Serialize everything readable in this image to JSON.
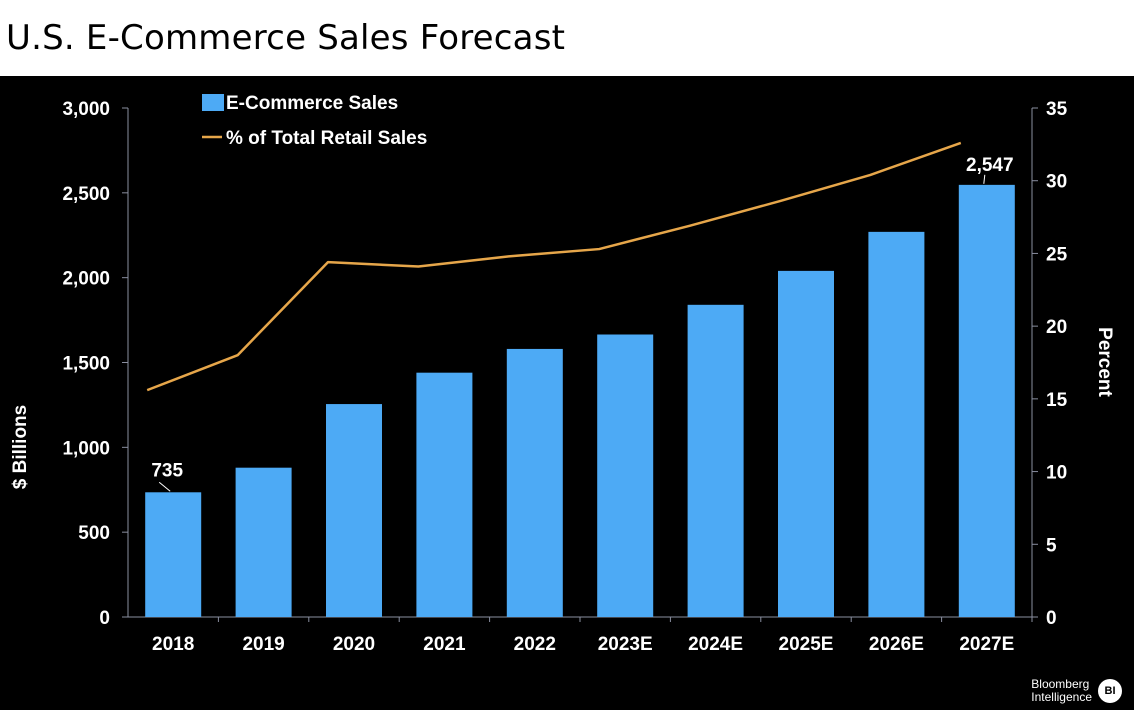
{
  "chart_data": {
    "type": "bar",
    "title": "U.S. E-Commerce Sales Forecast",
    "categories": [
      "2018",
      "2019",
      "2020",
      "2021",
      "2022",
      "2023E",
      "2024E",
      "2025E",
      "2026E",
      "2027E"
    ],
    "series": [
      {
        "name": "E-Commerce Sales",
        "type": "bar",
        "axis": "left",
        "color": "#4daaf5",
        "values": [
          735,
          880,
          1255,
          1440,
          1580,
          1665,
          1840,
          2040,
          2270,
          2547
        ]
      },
      {
        "name": "% of Total Retail Sales",
        "type": "line",
        "axis": "right",
        "color": "#e6a64a",
        "values": [
          15.6,
          18.0,
          24.4,
          24.1,
          24.8,
          25.3,
          26.9,
          28.6,
          30.4,
          32.6
        ]
      }
    ],
    "ylabel": "$ Billions",
    "ylabel_right": "Percent",
    "ylim": [
      0,
      3000
    ],
    "ylim_right": [
      0,
      35
    ],
    "yticks": [
      "0",
      "500",
      "1,000",
      "1,500",
      "2,000",
      "2,500",
      "3,000"
    ],
    "yticks_right": [
      "0",
      "5",
      "10",
      "15",
      "20",
      "25",
      "30",
      "35"
    ],
    "annotations": [
      {
        "index": 0,
        "text": "735"
      },
      {
        "index": 9,
        "text": "2,547"
      }
    ],
    "legend_position": "top-left",
    "grid": false
  },
  "brand": {
    "line1": "Bloomberg",
    "line2": "Intelligence",
    "badge": "BI"
  },
  "colors": {
    "background": "#000000",
    "axis": "#8a8fa0",
    "text": "#ffffff",
    "bar": "#4daaf5",
    "line": "#e6a64a"
  }
}
